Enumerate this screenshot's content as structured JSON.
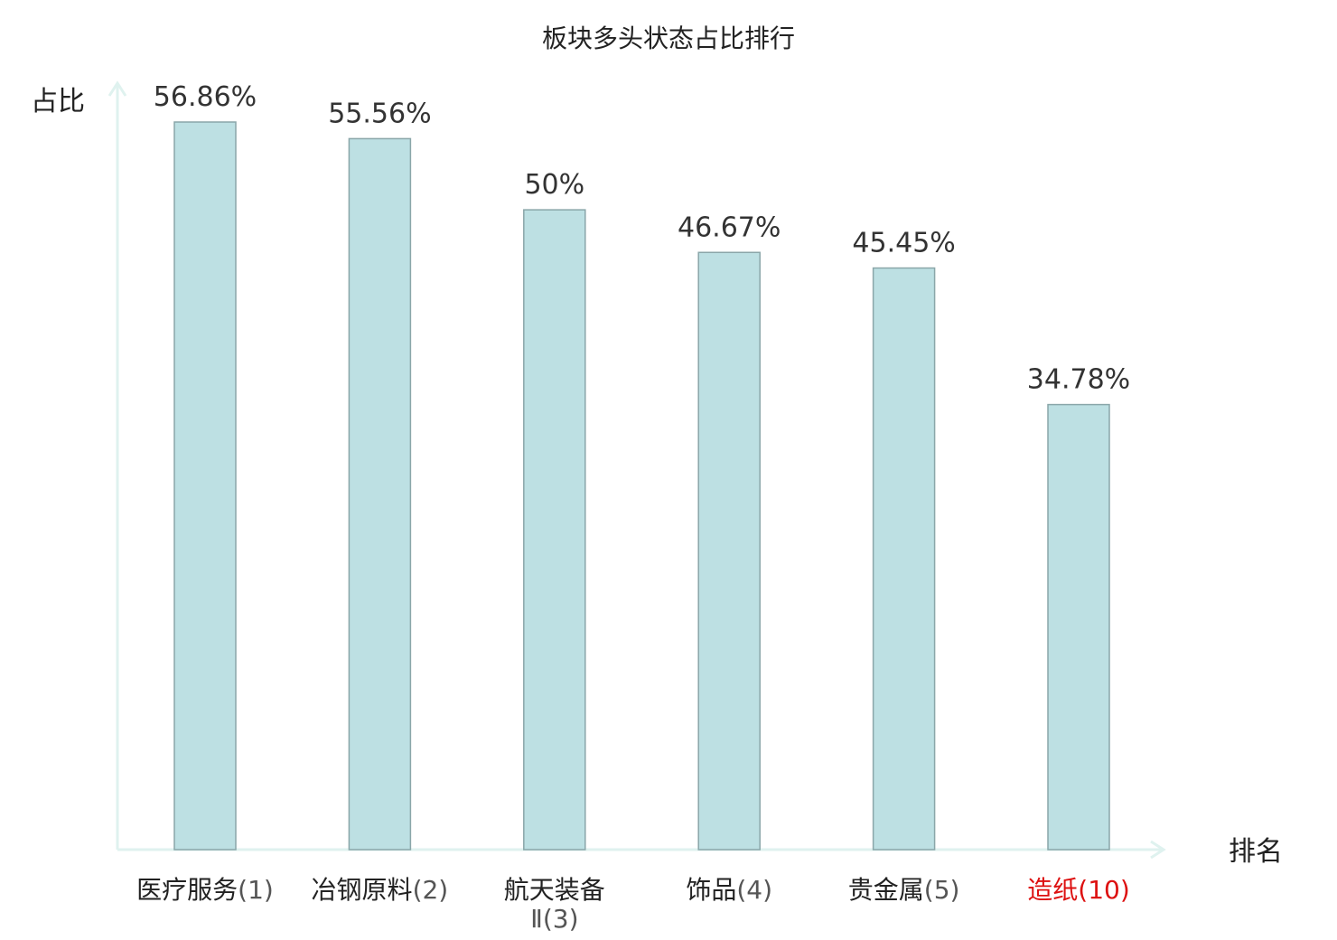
{
  "chart_data": {
    "type": "bar",
    "title": "板块多头状态占比排行",
    "xlabel": "排名",
    "ylabel": "占比",
    "ylim": [
      0,
      60
    ],
    "categories": [
      {
        "name": "医疗服务",
        "rank": "(1)",
        "highlight": false
      },
      {
        "name": "冶钢原料",
        "rank": "(2)",
        "highlight": false
      },
      {
        "name": "航天装备",
        "name_line2": "Ⅱ",
        "rank": "(3)",
        "highlight": false
      },
      {
        "name": "饰品",
        "rank": "(4)",
        "highlight": false
      },
      {
        "name": "贵金属",
        "rank": "(5)",
        "highlight": false
      },
      {
        "name": "造纸",
        "rank": "(10)",
        "highlight": true
      }
    ],
    "values": [
      56.86,
      55.56,
      50,
      46.67,
      45.45,
      34.78
    ],
    "value_labels": [
      "56.86%",
      "55.56%",
      "50%",
      "46.67%",
      "45.45%",
      "34.78%"
    ],
    "grid": false,
    "legend": "none",
    "colors": {
      "bar_fill": "#bde0e3",
      "bar_stroke": "#8aa6a9",
      "axis": "#dff2ef",
      "highlight": "#dd1111"
    }
  }
}
